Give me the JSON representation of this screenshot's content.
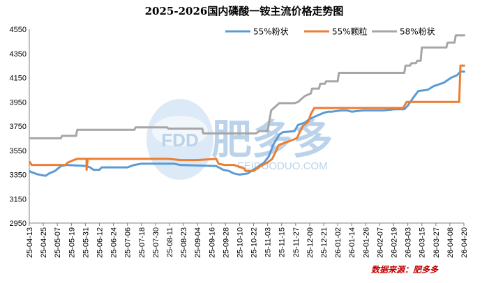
{
  "chart_data": {
    "type": "line",
    "title": "2025-2026国内磷酸一铵主流价格走势图",
    "xlabel": "",
    "ylabel": "",
    "ylim": [
      2950,
      4550
    ],
    "yticks": [
      2950,
      3150,
      3350,
      3550,
      3750,
      3950,
      4150,
      4350,
      4550
    ],
    "xlim": [
      "2025-04-13",
      "2026-04-20"
    ],
    "xticks": [
      "25-04-13",
      "25-04-25",
      "25-05-07",
      "25-05-19",
      "25-05-31",
      "25-06-12",
      "25-06-24",
      "25-07-06",
      "25-07-18",
      "25-07-30",
      "25-08-11",
      "25-08-23",
      "25-09-04",
      "25-09-16",
      "25-09-28",
      "25-10-10",
      "25-10-22",
      "25-11-03",
      "25-11-15",
      "25-11-27",
      "25-12-09",
      "25-12-21",
      "26-01-02",
      "26-01-14",
      "26-01-26",
      "26-02-07",
      "26-02-19",
      "26-03-03",
      "26-03-15",
      "26-03-27",
      "26-04-08",
      "26-04-20"
    ],
    "legend_position": "top-right",
    "grid": false,
    "source": "数据来源：肥多多",
    "watermark": {
      "brand": "FDD",
      "cn": "肥多多",
      "url": "FEIDUODUO.COM"
    },
    "series": [
      {
        "name": "55%粉状",
        "color": "#5b9bd5",
        "points": [
          [
            "2025-04-13",
            3380
          ],
          [
            "2025-04-15",
            3370
          ],
          [
            "2025-04-18",
            3360
          ],
          [
            "2025-04-21",
            3350
          ],
          [
            "2025-04-27",
            3340
          ],
          [
            "2025-04-30",
            3360
          ],
          [
            "2025-05-05",
            3380
          ],
          [
            "2025-05-10",
            3420
          ],
          [
            "2025-05-15",
            3430
          ],
          [
            "2025-06-01",
            3420
          ],
          [
            "2025-06-04",
            3410
          ],
          [
            "2025-06-07",
            3390
          ],
          [
            "2025-06-12",
            3390
          ],
          [
            "2025-06-14",
            3410
          ],
          [
            "2025-07-06",
            3410
          ],
          [
            "2025-07-12",
            3430
          ],
          [
            "2025-07-18",
            3440
          ],
          [
            "2025-08-15",
            3440
          ],
          [
            "2025-08-20",
            3430
          ],
          [
            "2025-09-20",
            3420
          ],
          [
            "2025-09-26",
            3390
          ],
          [
            "2025-10-01",
            3380
          ],
          [
            "2025-10-05",
            3360
          ],
          [
            "2025-10-10",
            3350
          ],
          [
            "2025-10-17",
            3360
          ],
          [
            "2025-10-25",
            3410
          ],
          [
            "2025-10-31",
            3450
          ],
          [
            "2025-11-04",
            3500
          ],
          [
            "2025-11-08",
            3600
          ],
          [
            "2025-11-13",
            3680
          ],
          [
            "2025-11-16",
            3700
          ],
          [
            "2025-11-26",
            3710
          ],
          [
            "2025-11-29",
            3760
          ],
          [
            "2025-12-05",
            3780
          ],
          [
            "2025-12-09",
            3810
          ],
          [
            "2025-12-16",
            3840
          ],
          [
            "2025-12-21",
            3860
          ],
          [
            "2025-12-25",
            3870
          ],
          [
            "2025-12-28",
            3870
          ],
          [
            "2026-01-05",
            3880
          ],
          [
            "2026-01-10",
            3880
          ],
          [
            "2026-01-14",
            3870
          ],
          [
            "2026-01-24",
            3880
          ],
          [
            "2026-02-10",
            3880
          ],
          [
            "2026-02-20",
            3890
          ],
          [
            "2026-02-28",
            3890
          ],
          [
            "2026-03-03",
            3920
          ],
          [
            "2026-03-08",
            3990
          ],
          [
            "2026-03-12",
            4040
          ],
          [
            "2026-03-20",
            4050
          ],
          [
            "2026-03-25",
            4080
          ],
          [
            "2026-04-03",
            4110
          ],
          [
            "2026-04-09",
            4150
          ],
          [
            "2026-04-14",
            4170
          ],
          [
            "2026-04-17",
            4200
          ],
          [
            "2026-04-21",
            4200
          ]
        ]
      },
      {
        "name": "55%颗粒",
        "color": "#ed7d31",
        "points": [
          [
            "2025-04-13",
            3460
          ],
          [
            "2025-04-15",
            3430
          ],
          [
            "2025-05-14",
            3430
          ],
          [
            "2025-05-16",
            3450
          ],
          [
            "2025-05-21",
            3470
          ],
          [
            "2025-05-24",
            3480
          ],
          [
            "2025-06-01",
            3480
          ],
          [
            "2025-06-01",
            3390
          ],
          [
            "2025-06-02",
            3480
          ],
          [
            "2025-08-10",
            3480
          ],
          [
            "2025-08-20",
            3470
          ],
          [
            "2025-09-04",
            3470
          ],
          [
            "2025-09-20",
            3480
          ],
          [
            "2025-09-22",
            3440
          ],
          [
            "2025-09-27",
            3430
          ],
          [
            "2025-10-05",
            3430
          ],
          [
            "2025-10-14",
            3400
          ],
          [
            "2025-10-15",
            3380
          ],
          [
            "2025-10-22",
            3380
          ],
          [
            "2025-10-28",
            3420
          ],
          [
            "2025-11-03",
            3450
          ],
          [
            "2025-11-07",
            3480
          ],
          [
            "2025-11-11",
            3560
          ],
          [
            "2025-11-12",
            3590
          ],
          [
            "2025-11-14",
            3600
          ],
          [
            "2025-11-20",
            3620
          ],
          [
            "2025-11-28",
            3650
          ],
          [
            "2025-12-03",
            3750
          ],
          [
            "2025-12-08",
            3790
          ],
          [
            "2025-12-10",
            3850
          ],
          [
            "2025-12-13",
            3900
          ],
          [
            "2026-02-27",
            3900
          ],
          [
            "2026-03-02",
            3950
          ],
          [
            "2026-04-16",
            3950
          ],
          [
            "2026-04-17",
            4250
          ],
          [
            "2026-04-21",
            4250
          ]
        ]
      },
      {
        "name": "58%粉状",
        "color": "#a6a6a6",
        "points": [
          [
            "2025-04-13",
            3650
          ],
          [
            "2025-05-10",
            3650
          ],
          [
            "2025-05-11",
            3670
          ],
          [
            "2025-05-23",
            3670
          ],
          [
            "2025-05-24",
            3720
          ],
          [
            "2025-07-12",
            3720
          ],
          [
            "2025-07-13",
            3740
          ],
          [
            "2025-08-09",
            3740
          ],
          [
            "2025-08-10",
            3730
          ],
          [
            "2025-09-08",
            3730
          ],
          [
            "2025-09-09",
            3690
          ],
          [
            "2025-10-04",
            3690
          ],
          [
            "2025-10-05",
            3690
          ],
          [
            "2025-10-24",
            3690
          ],
          [
            "2025-10-27",
            3710
          ],
          [
            "2025-11-03",
            3710
          ],
          [
            "2025-11-06",
            3880
          ],
          [
            "2025-11-13",
            3940
          ],
          [
            "2025-11-26",
            3940
          ],
          [
            "2025-11-29",
            3950
          ],
          [
            "2025-12-05",
            4000
          ],
          [
            "2025-12-10",
            4020
          ],
          [
            "2025-12-11",
            4060
          ],
          [
            "2025-12-17",
            4060
          ],
          [
            "2025-12-18",
            4100
          ],
          [
            "2025-12-22",
            4100
          ],
          [
            "2025-12-23",
            4120
          ],
          [
            "2026-01-02",
            4120
          ],
          [
            "2026-01-03",
            4190
          ],
          [
            "2026-02-28",
            4190
          ],
          [
            "2026-03-01",
            4250
          ],
          [
            "2026-03-05",
            4250
          ],
          [
            "2026-03-06",
            4270
          ],
          [
            "2026-03-10",
            4270
          ],
          [
            "2026-03-11",
            4290
          ],
          [
            "2026-03-14",
            4290
          ],
          [
            "2026-03-15",
            4400
          ],
          [
            "2026-04-05",
            4400
          ],
          [
            "2026-04-06",
            4440
          ],
          [
            "2026-04-12",
            4440
          ],
          [
            "2026-04-13",
            4500
          ],
          [
            "2026-04-21",
            4500
          ]
        ]
      }
    ]
  }
}
